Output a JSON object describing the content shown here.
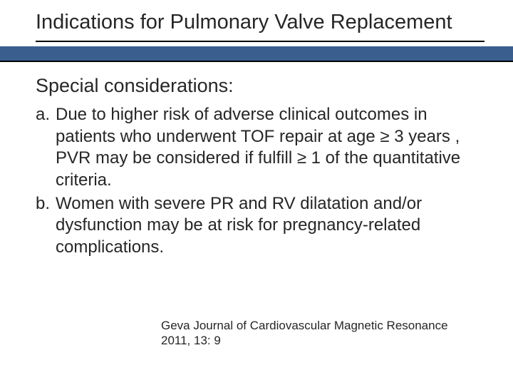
{
  "slide": {
    "title": "Indications for Pulmonary Valve Replacement",
    "subhead": "Special considerations:",
    "items": [
      {
        "marker": "a.",
        "text": "Due to higher risk of adverse clinical outcomes in patients who underwent TOF repair at age ≥ 3 years , PVR may be considered if fulfill ≥ 1 of the quantitative criteria."
      },
      {
        "marker": "b.",
        "text": "Women with severe PR and RV dilatation and/or dysfunction may be at risk for pregnancy-related complications."
      }
    ],
    "citation": "Geva Journal of Cardiovascular Magnetic Resonance 2011, 13: 9"
  },
  "colors": {
    "band": "#3a5f8f",
    "text": "#262626",
    "background": "#ffffff"
  },
  "typography": {
    "title_fontsize": 29,
    "subhead_fontsize": 27,
    "body_fontsize": 24,
    "citation_fontsize": 17,
    "font_family": "Arial"
  }
}
